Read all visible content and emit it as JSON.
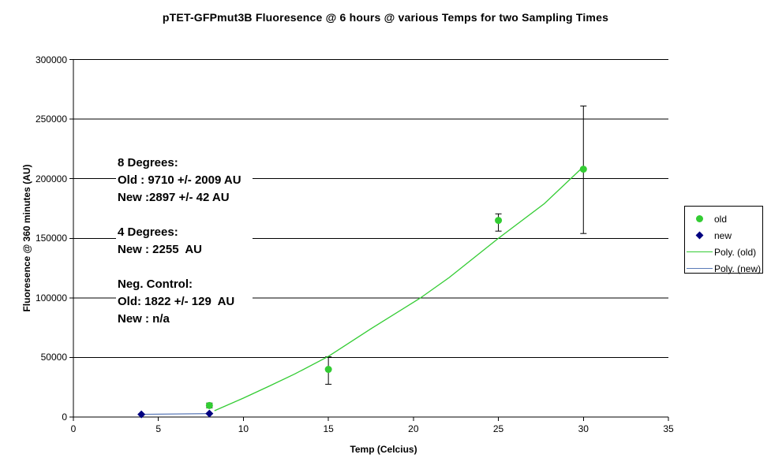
{
  "chart_data": {
    "type": "scatter",
    "title": "pTET-GFPmut3B Fluoresence @ 6 hours @ various Temps for two Sampling Times",
    "xlabel": "Temp (Celcius)",
    "ylabel": "Fluoresence @ 360 minutes (AU)",
    "xlim": [
      0,
      35
    ],
    "ylim": [
      0,
      300000
    ],
    "xticks": [
      0,
      5,
      10,
      15,
      20,
      25,
      30,
      35
    ],
    "yticks": [
      0,
      50000,
      100000,
      150000,
      200000,
      250000,
      300000
    ],
    "grid": "horizontal",
    "legend_position": "right",
    "colors": {
      "old": "#33CC33",
      "new": "#000080",
      "poly_old": "#33CC33",
      "poly_new": "#5B7AB8",
      "axis": "#000000"
    },
    "series": [
      {
        "name": "old",
        "marker": "circle",
        "color": "#33CC33",
        "points": [
          {
            "x": 8,
            "y": 9710,
            "err": [
              7701,
              11719
            ]
          },
          {
            "x": 15,
            "y": 40000,
            "err": [
              27500,
              50500
            ]
          },
          {
            "x": 25,
            "y": 165000,
            "err": [
              156000,
              170500
            ]
          },
          {
            "x": 30,
            "y": 208000,
            "err": [
              154000,
              261000
            ]
          }
        ]
      },
      {
        "name": "new",
        "marker": "diamond",
        "color": "#000080",
        "points": [
          {
            "x": 4,
            "y": 2255
          },
          {
            "x": 8,
            "y": 2897
          }
        ]
      }
    ],
    "trendlines": [
      {
        "name": "Poly. (old)",
        "color": "#33CC33",
        "points": [
          [
            8.3,
            5300
          ],
          [
            10,
            15900
          ],
          [
            11.5,
            25800
          ],
          [
            13,
            36000
          ],
          [
            15,
            50900
          ],
          [
            17.5,
            74000
          ],
          [
            20.4,
            99800
          ],
          [
            22.1,
            117000
          ],
          [
            25,
            150000
          ],
          [
            27.7,
            179000
          ],
          [
            30,
            210100
          ]
        ]
      },
      {
        "name": "Poly. (new)",
        "color": "#5B7AB8",
        "points": [
          [
            4,
            2255
          ],
          [
            8,
            2897
          ]
        ]
      }
    ],
    "legend": [
      {
        "label": "old",
        "swatch": "circle",
        "color": "#33CC33"
      },
      {
        "label": "new",
        "swatch": "diamond",
        "color": "#000080"
      },
      {
        "label": "Poly. (old)",
        "swatch": "line",
        "color": "#33CC33"
      },
      {
        "label": "Poly. (new)",
        "swatch": "line",
        "color": "#5B7AB8"
      }
    ],
    "annotation": {
      "lines": [
        "8 Degrees:",
        "Old : 9710 +/- 2009 AU",
        "New :2897 +/- 42 AU",
        "",
        "4 Degrees:",
        "New : 2255  AU",
        "",
        "Neg. Control:",
        "Old: 1822 +/- 129  AU",
        "New : n/a"
      ]
    }
  }
}
